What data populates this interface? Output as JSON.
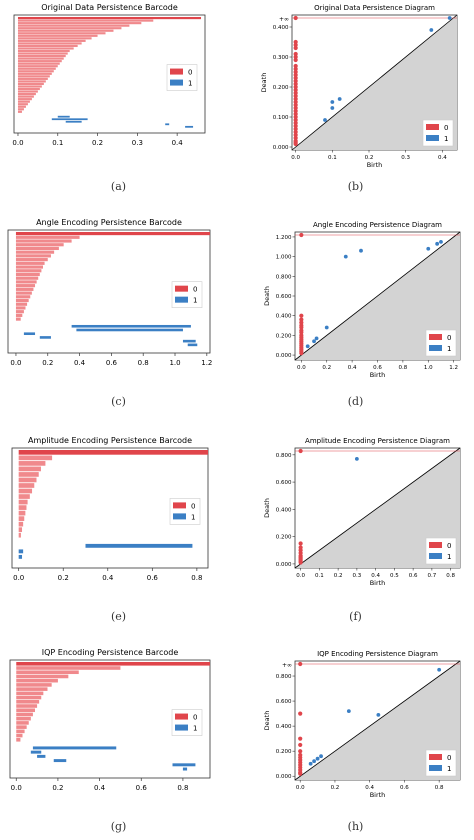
{
  "figure": {
    "captions": [
      "(a)",
      "(b)",
      "(c)",
      "(d)",
      "(e)",
      "(f)",
      "(g)",
      "(h)"
    ]
  },
  "colors": {
    "dim0": "#e0454b",
    "dim0_light": "#f0898c",
    "dim1": "#3b7fc4",
    "diagonal_fill": "#d3d3d3"
  },
  "chart_data": [
    {
      "type": "bar",
      "subtype": "persistence-barcode",
      "title": "Original Data Persistence Barcode",
      "xticks": [
        "0.0",
        "0.1",
        "0.2",
        "0.3",
        "0.4"
      ],
      "xlim": [
        -0.01,
        0.47
      ],
      "legend": [
        "0",
        "1"
      ],
      "legend_position": "right",
      "h0_deaths": [
        0.46,
        0.34,
        0.31,
        0.28,
        0.26,
        0.24,
        0.22,
        0.2,
        0.185,
        0.17,
        0.16,
        0.15,
        0.14,
        0.13,
        0.125,
        0.12,
        0.115,
        0.11,
        0.105,
        0.1,
        0.095,
        0.09,
        0.085,
        0.08,
        0.075,
        0.07,
        0.065,
        0.06,
        0.055,
        0.05,
        0.045,
        0.04,
        0.035,
        0.03,
        0.025,
        0.02,
        0.015,
        0.01
      ],
      "h1_bars": [
        [
          0.1,
          0.13
        ],
        [
          0.085,
          0.175
        ],
        [
          0.12,
          0.16
        ],
        [
          0.37,
          0.38
        ],
        [
          0.42,
          0.44
        ]
      ]
    },
    {
      "type": "scatter",
      "subtype": "persistence-diagram",
      "title": "Original Data Persistence Diagram",
      "xlabel": "Birth",
      "ylabel": "Death",
      "xticks": [
        "0.0",
        "0.1",
        "0.2",
        "0.3",
        "0.4"
      ],
      "yticks": [
        "0.000",
        "0.100",
        "0.200",
        "0.300",
        "0.400"
      ],
      "inf_label": "+∞",
      "lim": [
        -0.01,
        0.44
      ],
      "legend": [
        "0",
        "1"
      ],
      "legend_position": "lower-right",
      "h0_deaths": [
        0.35,
        0.34,
        0.33,
        0.31,
        0.3,
        0.29,
        0.27,
        0.26,
        0.25,
        0.24,
        0.23,
        0.22,
        0.21,
        0.2,
        0.19,
        0.18,
        0.17,
        0.16,
        0.15,
        0.14,
        0.13,
        0.12,
        0.11,
        0.1,
        0.09,
        0.08,
        0.07,
        0.06,
        0.05,
        0.04,
        0.03,
        0.02,
        0.015,
        0.01
      ],
      "h0_infinite_count": 1,
      "h1_points": [
        [
          0.08,
          0.09
        ],
        [
          0.1,
          0.15
        ],
        [
          0.12,
          0.16
        ],
        [
          0.1,
          0.13
        ],
        [
          0.37,
          0.39
        ],
        [
          0.42,
          0.43
        ]
      ]
    },
    {
      "type": "bar",
      "subtype": "persistence-barcode",
      "title": "Angle Encoding Persistence Barcode",
      "xticks": [
        "0.0",
        "0.2",
        "0.4",
        "0.6",
        "0.8",
        "1.0",
        "1.2"
      ],
      "xlim": [
        -0.05,
        1.22
      ],
      "legend": [
        "0",
        "1"
      ],
      "legend_position": "right",
      "h0_deaths": [
        1.22,
        0.4,
        0.35,
        0.3,
        0.27,
        0.24,
        0.22,
        0.2,
        0.18,
        0.17,
        0.16,
        0.15,
        0.14,
        0.13,
        0.12,
        0.11,
        0.1,
        0.09,
        0.08,
        0.07,
        0.06,
        0.05,
        0.04,
        0.03
      ],
      "h1_bars": [
        [
          0.35,
          1.1
        ],
        [
          0.38,
          1.05
        ],
        [
          0.05,
          0.12
        ],
        [
          0.15,
          0.22
        ],
        [
          1.05,
          1.13
        ],
        [
          1.08,
          1.14
        ]
      ]
    },
    {
      "type": "scatter",
      "subtype": "persistence-diagram",
      "title": "Angle Encoding Persistence Diagram",
      "xlabel": "Birth",
      "ylabel": "Death",
      "xticks": [
        "0.0",
        "0.2",
        "0.4",
        "0.6",
        "0.8",
        "1.0",
        "1.2"
      ],
      "yticks": [
        "0.000",
        "0.200",
        "0.400",
        "0.600",
        "0.800",
        "1.000",
        "1.200"
      ],
      "lim": [
        -0.05,
        1.25
      ],
      "legend": [
        "0",
        "1"
      ],
      "legend_position": "lower-right",
      "h0_deaths": [
        0.4,
        0.36,
        0.33,
        0.3,
        0.28,
        0.25,
        0.23,
        0.2,
        0.18,
        0.16,
        0.14,
        0.12,
        0.1,
        0.08,
        0.06,
        0.04,
        0.02
      ],
      "h0_infinite_count": 1,
      "h1_points": [
        [
          0.35,
          1.0
        ],
        [
          0.47,
          1.06
        ],
        [
          1.0,
          1.08
        ],
        [
          1.07,
          1.13
        ],
        [
          1.1,
          1.15
        ],
        [
          0.1,
          0.14
        ],
        [
          0.12,
          0.17
        ],
        [
          0.2,
          0.28
        ],
        [
          0.05,
          0.09
        ]
      ]
    },
    {
      "type": "bar",
      "subtype": "persistence-barcode",
      "title": "Amplitude Encoding Persistence Barcode",
      "xticks": [
        "0.0",
        "0.2",
        "0.4",
        "0.6",
        "0.8"
      ],
      "xlim": [
        -0.03,
        0.85
      ],
      "legend": [
        "0",
        "1"
      ],
      "legend_position": "right",
      "h0_deaths": [
        0.85,
        0.15,
        0.12,
        0.1,
        0.09,
        0.08,
        0.07,
        0.06,
        0.05,
        0.04,
        0.035,
        0.03,
        0.025,
        0.02,
        0.015,
        0.01
      ],
      "h1_bars": [
        [
          0.3,
          0.78
        ],
        [
          0.0,
          0.02
        ],
        [
          0.0,
          0.015
        ]
      ]
    },
    {
      "type": "scatter",
      "subtype": "persistence-diagram",
      "title": "Amplitude Encoding Persistence Diagram",
      "xlabel": "Birth",
      "ylabel": "Death",
      "xticks": [
        "0.0",
        "0.1",
        "0.2",
        "0.3",
        "0.4",
        "0.5",
        "0.6",
        "0.7",
        "0.8"
      ],
      "yticks": [
        "0.000",
        "0.200",
        "0.400",
        "0.600",
        "0.800"
      ],
      "lim": [
        -0.03,
        0.85
      ],
      "legend": [
        "0",
        "1"
      ],
      "legend_position": "lower-right",
      "h0_deaths": [
        0.15,
        0.12,
        0.1,
        0.08,
        0.06,
        0.05,
        0.04,
        0.03,
        0.02,
        0.01
      ],
      "h0_infinite_count": 1,
      "h1_points": [
        [
          0.3,
          0.77
        ]
      ]
    },
    {
      "type": "bar",
      "subtype": "persistence-barcode",
      "title": "IQP Encoding Persistence Barcode",
      "xticks": [
        "0.0",
        "0.2",
        "0.4",
        "0.6",
        "0.8"
      ],
      "xlim": [
        -0.03,
        0.93
      ],
      "legend": [
        "0",
        "1"
      ],
      "legend_position": "right",
      "h0_deaths": [
        0.93,
        0.5,
        0.3,
        0.25,
        0.2,
        0.17,
        0.15,
        0.13,
        0.12,
        0.11,
        0.1,
        0.09,
        0.08,
        0.07,
        0.06,
        0.05,
        0.04,
        0.03,
        0.02
      ],
      "h1_bars": [
        [
          0.08,
          0.48
        ],
        [
          0.07,
          0.12
        ],
        [
          0.1,
          0.14
        ],
        [
          0.18,
          0.24
        ],
        [
          0.75,
          0.86
        ],
        [
          0.8,
          0.82
        ]
      ]
    },
    {
      "type": "scatter",
      "subtype": "persistence-diagram",
      "title": "IQP Encoding Persistence Diagram",
      "xlabel": "Birth",
      "ylabel": "Death",
      "xticks": [
        "0.0",
        "0.2",
        "0.4",
        "0.6",
        "0.8"
      ],
      "yticks": [
        "0.000",
        "0.200",
        "0.400",
        "0.600",
        "0.800"
      ],
      "inf_label": "+∞",
      "lim": [
        -0.03,
        0.92
      ],
      "legend": [
        "0",
        "1"
      ],
      "legend_position": "lower-right",
      "h0_deaths": [
        0.5,
        0.3,
        0.25,
        0.2,
        0.17,
        0.15,
        0.13,
        0.11,
        0.09,
        0.07,
        0.05,
        0.03,
        0.02
      ],
      "h0_infinite_count": 1,
      "h1_points": [
        [
          0.28,
          0.52
        ],
        [
          0.45,
          0.49
        ],
        [
          0.8,
          0.85
        ],
        [
          0.08,
          0.12
        ],
        [
          0.1,
          0.14
        ],
        [
          0.12,
          0.16
        ],
        [
          0.06,
          0.1
        ]
      ]
    }
  ]
}
